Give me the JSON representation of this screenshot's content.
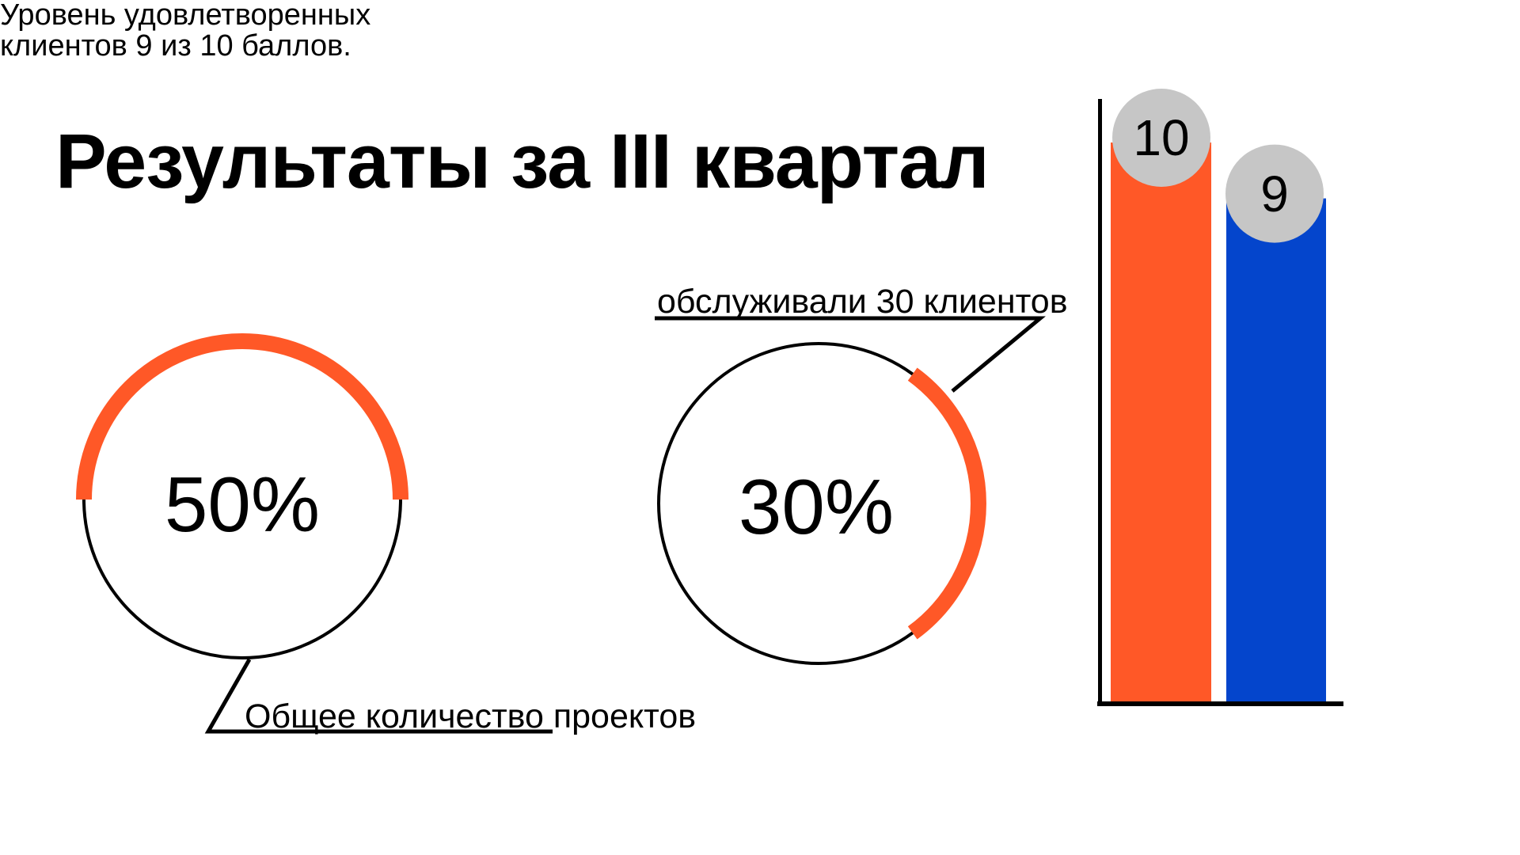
{
  "title": "Результаты за III квартал",
  "colors": {
    "accent_orange": "#FF5827",
    "accent_blue": "#0445CC",
    "badge_gray": "#C6C6C6",
    "ink": "#000000"
  },
  "chart_data": [
    {
      "type": "donut",
      "id": "projects",
      "percent": 50,
      "value_label": "50%",
      "callout": "Общее количество проектов",
      "ring_color": "#000000",
      "arc_color": "#FF5827",
      "arc_mid_angle_deg": 90
    },
    {
      "type": "donut",
      "id": "clients",
      "percent": 30,
      "value_label": "30%",
      "callout": "обслуживали 30 клиентов",
      "ring_color": "#000000",
      "arc_color": "#FF5827",
      "arc_mid_angle_deg": 0
    },
    {
      "type": "bar",
      "id": "satisfaction",
      "values": [
        10,
        9
      ],
      "badge_labels": [
        "10",
        "9"
      ],
      "bar_colors": [
        "#FF5827",
        "#0445CC"
      ],
      "badge_color": "#C6C6C6",
      "axis_color": "#000000",
      "ylim": [
        0,
        10
      ],
      "caption_lines": [
        "Уровень удовлетворенных",
        "клиентов 9 из 10 баллов."
      ]
    }
  ]
}
